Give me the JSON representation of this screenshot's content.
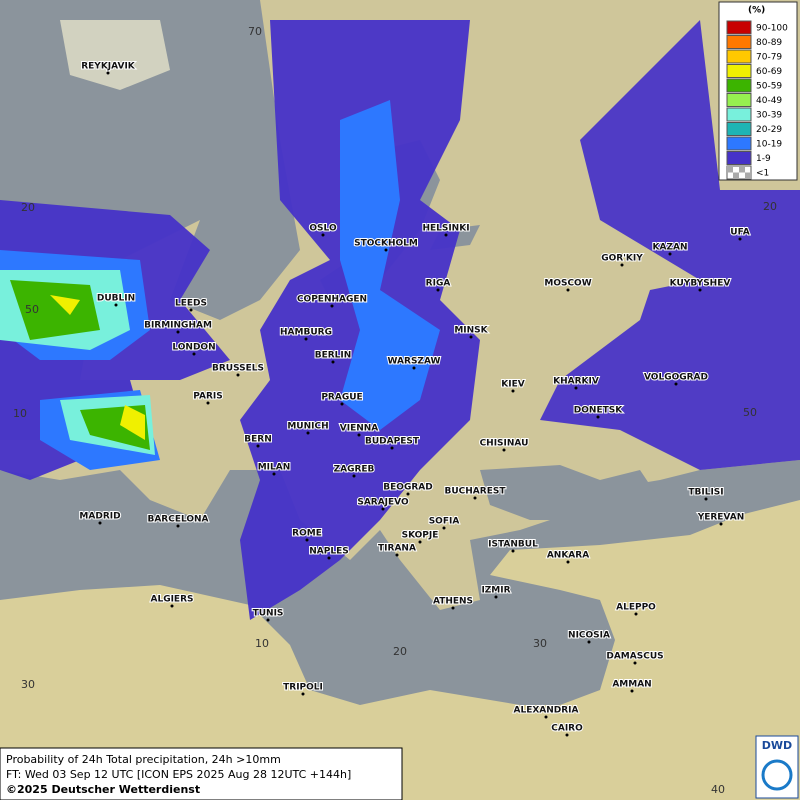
{
  "legend": {
    "title": "(%)",
    "items": [
      {
        "label": "90-100",
        "color": "#c80000"
      },
      {
        "label": "80-89",
        "color": "#ff7800"
      },
      {
        "label": "70-79",
        "color": "#ffc800"
      },
      {
        "label": "60-69",
        "color": "#f0f000"
      },
      {
        "label": "50-59",
        "color": "#3cb400"
      },
      {
        "label": "40-49",
        "color": "#96f050"
      },
      {
        "label": "30-39",
        "color": "#78f0dc"
      },
      {
        "label": "20-29",
        "color": "#1eb4b4"
      },
      {
        "label": "10-19",
        "color": "#2d78ff"
      },
      {
        "label": "1-9",
        "color": "#4632c8"
      },
      {
        "label": "<1",
        "color": "#aaaaaa"
      }
    ]
  },
  "cities": [
    "REYKJAVIK",
    "OSLO",
    "STOCKHOLM",
    "HELSINKI",
    "DUBLIN",
    "LEEDS",
    "GOR'KIY",
    "KAZAN",
    "UFA",
    "MOSCOW",
    "KUYBYSHEV",
    "RIGA",
    "COPENHAGEN",
    "BIRMINGHAM",
    "HAMBURG",
    "MINSK",
    "LONDON",
    "BERLIN",
    "WARSZAW",
    "BRUSSELS",
    "KIEV",
    "KHARKIV",
    "VOLGOGRAD",
    "PARIS",
    "PRAGUE",
    "DONETSK",
    "MUNICH",
    "VIENNA",
    "BERN",
    "BUDAPEST",
    "CHISINAU",
    "MILAN",
    "ZAGREB",
    "BEOGRAD",
    "BUCHAREST",
    "TBILISI",
    "SARAJEVO",
    "MADRID",
    "BARCELONA",
    "YEREVAN",
    "SOFIA",
    "ROME",
    "SKOPJE",
    "ISTANBUL",
    "ANKARA",
    "NAPLES",
    "TIRANA",
    "ALGIERS",
    "IZMIR",
    "ATHENS",
    "ALEPPO",
    "TUNIS",
    "NICOSIA",
    "DAMASCUS",
    "TRIPOLI",
    "AMMAN",
    "ALEXANDRIA",
    "CAIRO"
  ],
  "grid_labels": [
    "70",
    "20",
    "50",
    "10",
    "30",
    "20",
    "50",
    "10",
    "20",
    "30",
    "40"
  ],
  "footer": {
    "line1": "Probability of 24h Total precipitation, 24h >10mm",
    "line2": "FT: Wed 03 Sep 12 UTC [ICON EPS 2025 Aug 28 12UTC +144h]",
    "line3": "©2025 Deutscher Wetterdienst"
  },
  "logo": "DWD"
}
